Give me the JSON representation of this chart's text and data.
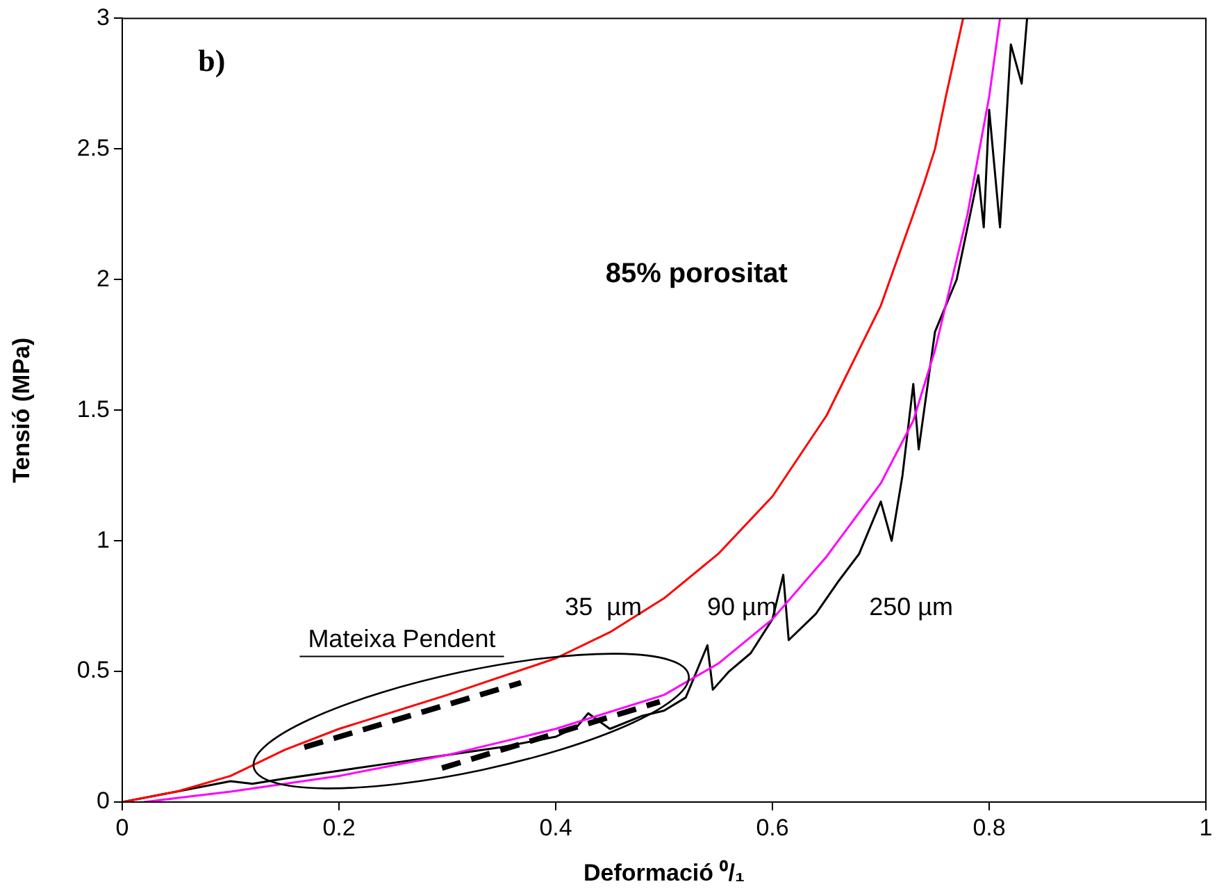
{
  "chart_data": {
    "type": "line",
    "xlabel": "Deformació ⁰/₁",
    "ylabel": "Tensió (MPa)",
    "xlim": [
      0,
      1
    ],
    "xticks": [
      0,
      0.2,
      0.4,
      0.6,
      0.8,
      1
    ],
    "ylim": [
      0,
      3
    ],
    "yticks": [
      0,
      0.5,
      1,
      1.5,
      2,
      2.5,
      3
    ],
    "grid": false,
    "legend": false,
    "marker": "none",
    "series": [
      {
        "color": "#ff0000",
        "x": [
          0,
          0.05,
          0.1,
          0.15,
          0.2,
          0.3,
          0.4,
          0.45,
          0.5,
          0.55,
          0.6,
          0.65,
          0.7,
          0.73,
          0.74,
          0.75,
          0.76,
          0.776
        ],
        "values": [
          0,
          0.04,
          0.1,
          0.2,
          0.28,
          0.41,
          0.55,
          0.65,
          0.78,
          0.95,
          1.17,
          1.48,
          1.9,
          2.25,
          2.37,
          2.5,
          2.7,
          3
        ]
      },
      {
        "color": "#ff00ff",
        "x": [
          0.02,
          0.1,
          0.2,
          0.3,
          0.4,
          0.5,
          0.55,
          0.6,
          0.65,
          0.7,
          0.73,
          0.75,
          0.78,
          0.8,
          0.81
        ],
        "values": [
          0,
          0.04,
          0.1,
          0.18,
          0.28,
          0.41,
          0.53,
          0.7,
          0.94,
          1.22,
          1.46,
          1.73,
          2.25,
          2.7,
          3
        ]
      },
      {
        "color": "#000000",
        "x": [
          0,
          0.05,
          0.1,
          0.12,
          0.15,
          0.2,
          0.25,
          0.3,
          0.35,
          0.4,
          0.42,
          0.43,
          0.45,
          0.48,
          0.5,
          0.52,
          0.54,
          0.545,
          0.56,
          0.58,
          0.6,
          0.61,
          0.615,
          0.64,
          0.66,
          0.68,
          0.7,
          0.71,
          0.72,
          0.73,
          0.735,
          0.75,
          0.77,
          0.79,
          0.795,
          0.8,
          0.81,
          0.82,
          0.83,
          0.835
        ],
        "values": [
          0,
          0.04,
          0.08,
          0.07,
          0.09,
          0.12,
          0.15,
          0.18,
          0.21,
          0.25,
          0.29,
          0.34,
          0.28,
          0.33,
          0.35,
          0.4,
          0.6,
          0.43,
          0.5,
          0.57,
          0.7,
          0.87,
          0.62,
          0.72,
          0.84,
          0.95,
          1.15,
          1,
          1.25,
          1.6,
          1.35,
          1.8,
          2,
          2.4,
          2.2,
          2.65,
          2.2,
          2.9,
          2.75,
          3
        ]
      },
      {
        "color": "#000000",
        "line_style": "dashed",
        "x": [
          0.168,
          0.368
        ],
        "values": [
          0.21,
          0.457
        ]
      },
      {
        "color": "#000000",
        "line_style": "dashed",
        "x": [
          0.295,
          0.496
        ],
        "values": [
          0.13,
          0.384
        ]
      }
    ],
    "annotations": [
      "b)",
      "85% porositat",
      "35  µm",
      "90 µm",
      "250 µm",
      "Mateixa Pendent"
    ]
  }
}
